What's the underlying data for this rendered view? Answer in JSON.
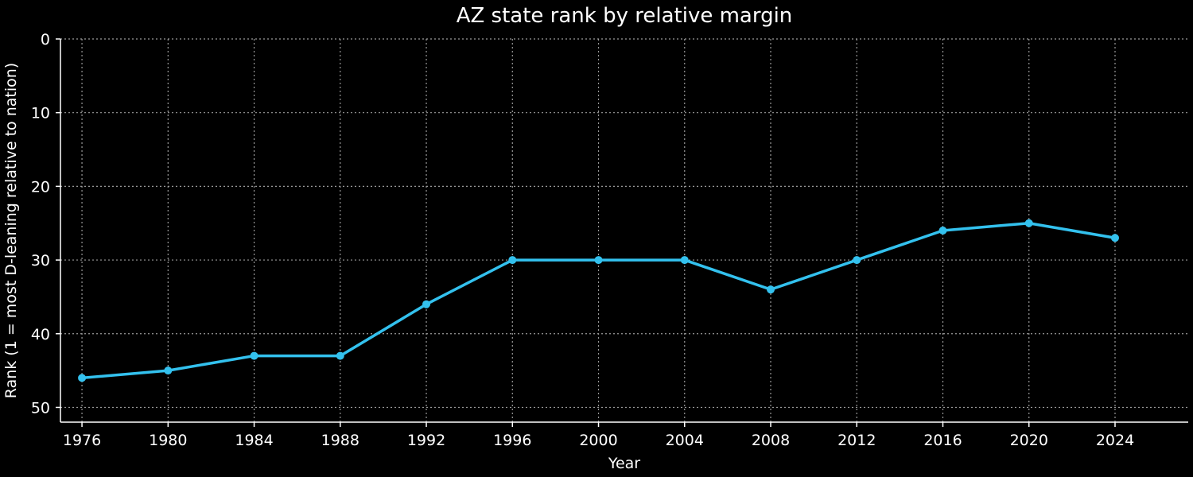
{
  "chart_data": {
    "type": "line",
    "title": "AZ state rank by relative margin",
    "xlabel": "Year",
    "ylabel": "Rank (1 = most D-leaning relative to nation)",
    "x": [
      1976,
      1980,
      1984,
      1988,
      1992,
      1996,
      2000,
      2004,
      2008,
      2012,
      2016,
      2020,
      2024
    ],
    "series": [
      {
        "values": [
          46,
          45,
          43,
          43,
          36,
          30,
          30,
          30,
          34,
          30,
          26,
          25,
          27
        ]
      }
    ],
    "xlim": [
      1975,
      2027.4
    ],
    "ylim": [
      52,
      0
    ],
    "y_inverted": true,
    "xticks": [
      1976,
      1980,
      1984,
      1988,
      1992,
      1996,
      2000,
      2004,
      2008,
      2012,
      2016,
      2020,
      2024
    ],
    "yticks": [
      0,
      10,
      20,
      30,
      40,
      50
    ],
    "grid": true,
    "colors": {
      "background": "#000000",
      "line": "#33c1ee",
      "text": "#ffffff",
      "grid": "#9a9a9a"
    }
  }
}
